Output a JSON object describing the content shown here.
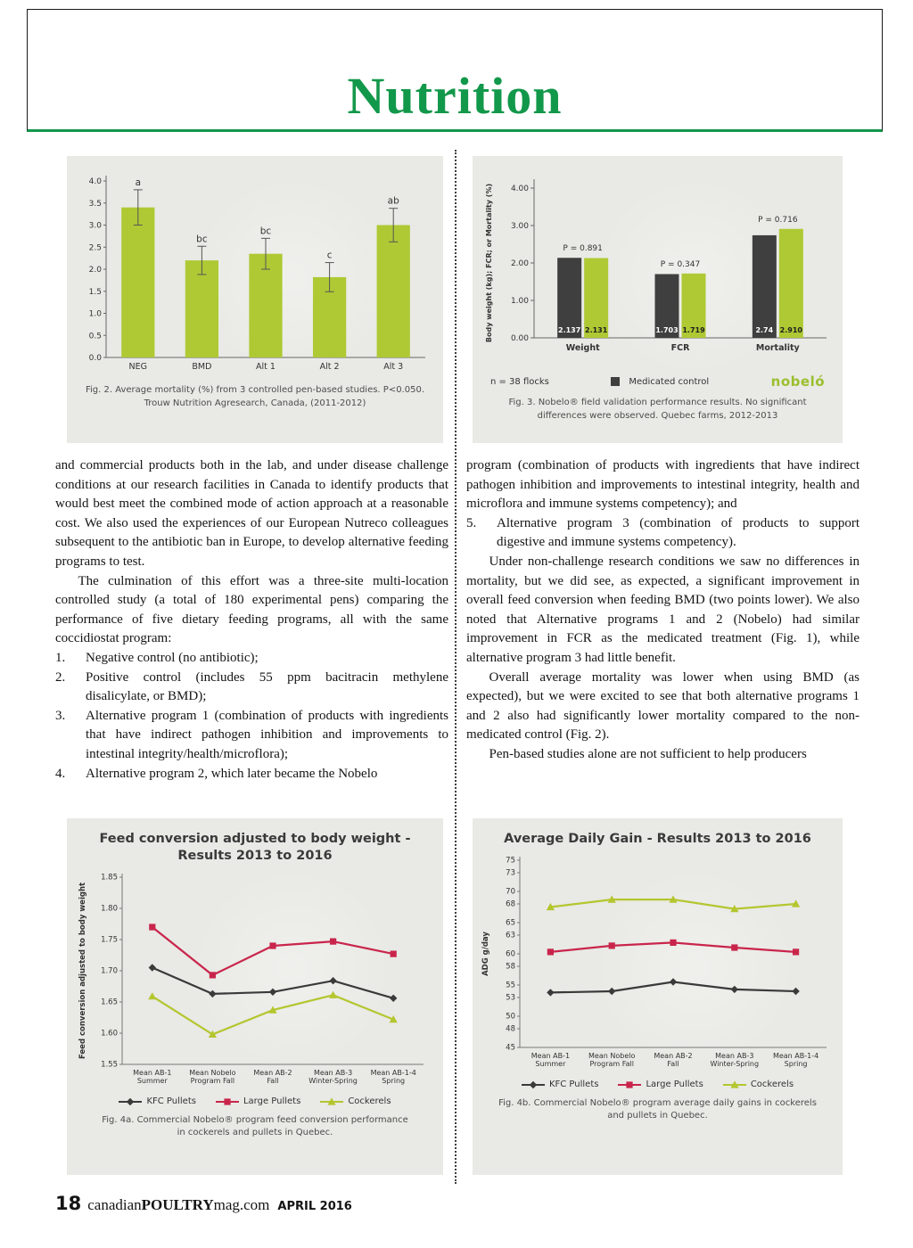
{
  "header": {
    "title": "Nutrition"
  },
  "article": {
    "left_column": {
      "p1": "and commercial products both in the lab, and under disease challenge conditions at our research facilities in Canada to identify products that would best meet the combined mode of action approach at a reasonable cost. We also used the experiences of our European Nutreco colleagues subsequent to the antibiotic ban in Europe, to develop alternative feeding programs to test.",
      "p2": "The culmination of this effort was a three-site multi-location controlled study (a total of 180 experimental pens) comparing the performance of five dietary feeding programs, all with the same coccidiostat program:",
      "list": [
        {
          "num": "1.",
          "text": "Negative control (no antibiotic);"
        },
        {
          "num": "2.",
          "text": "Positive control (includes 55 ppm bacitracin methylene disalicylate, or BMD);"
        },
        {
          "num": "3.",
          "text": "Alternative program 1 (combination of products with ingredients that have indirect pathogen inhibition and improvements to intestinal integrity/health/microflora);"
        },
        {
          "num": "4.",
          "text": "Alternative program 2, which later became the Nobelo"
        }
      ]
    },
    "right_column": {
      "continuation": "program (combination of products with ingredients that have indirect pathogen inhibition and improvements to intestinal integrity, health and microflora and immune systems competency); and",
      "item5": {
        "num": "5.",
        "text": "Alternative program 3 (combination of products to support digestive and immune systems competency)."
      },
      "p3": "Under non-challenge research conditions we saw no differences in mortality, but we did see, as expected, a significant improvement in overall feed conversion when feeding BMD (two points lower). We also noted that Alternative programs 1 and 2 (Nobelo) had similar improvement in FCR as the medicated treatment (Fig. 1), while alternative program 3 had little benefit.",
      "p4": "Overall average mortality was lower when using BMD (as expected), but we were excited to see that both alternative programs 1 and 2 also had significantly lower mortality compared to the non-medicated control (Fig. 2).",
      "p5": "Pen-based studies alone are not sufficient to help producers"
    }
  },
  "chart_data": {
    "fig2": {
      "type": "bar",
      "categories": [
        "NEG",
        "BMD",
        "Alt 1",
        "Alt 2",
        "Alt 3"
      ],
      "values": [
        3.4,
        2.2,
        2.35,
        1.82,
        3.0
      ],
      "errors": [
        0.4,
        0.32,
        0.35,
        0.33,
        0.38
      ],
      "sig_labels": [
        "a",
        "bc",
        "bc",
        "c",
        "ab"
      ],
      "ylim": [
        0,
        4
      ],
      "ytick_values": [
        0,
        0.5,
        1,
        1.5,
        2,
        2.5,
        3,
        3.5,
        4
      ],
      "ytick_labels": [
        "0.0",
        "0.5",
        "1.0",
        "1.5",
        "2.0",
        "2.5",
        "3.0",
        "3.5",
        "4.0"
      ],
      "bar_color": "#aec934",
      "caption_line1": "Fig. 2.   Average mortality (%) from 3 controlled pen-based studies. P<0.050.",
      "caption_line2": "Trouw Nutrition Agresearch, Canada, (2011-2012)"
    },
    "fig3": {
      "type": "grouped-bar",
      "ylabel": "Body weight (kg); FCR; or Mortality (%)",
      "groups": [
        "Weight",
        "FCR",
        "Mortality"
      ],
      "series": [
        {
          "name": "Medicated control",
          "color": "#3f3f3f",
          "values": [
            2.137,
            1.703,
            2.74
          ],
          "value_labels": [
            "2.137",
            "1.703",
            "2.74"
          ]
        },
        {
          "name": "Nobelo",
          "color": "#aec934",
          "values": [
            2.131,
            1.719,
            2.91
          ],
          "value_labels": [
            "2.131",
            "1.719",
            "2.910"
          ]
        }
      ],
      "p_values": [
        "P = 0.891",
        "P = 0.347",
        "P = 0.716"
      ],
      "ylim": [
        0,
        4
      ],
      "ytick_values": [
        0,
        1,
        2,
        3,
        4
      ],
      "ytick_labels": [
        "0.00",
        "1.00",
        "2.00",
        "3.00",
        "4.00"
      ],
      "note": "n = 38 flocks",
      "legend_label": "Medicated control",
      "logo_text": "nobeló",
      "caption_line1": "Fig. 3.   Nobelo® field validation performance results. No significant",
      "caption_line2": "differences were observed. Quebec farms, 2012-2013"
    },
    "fig4a": {
      "type": "line",
      "title_line1": "Feed conversion adjusted to body weight -",
      "title_line2": "Results 2013 to 2016",
      "ylabel": "Feed conversion adjusted to body weight",
      "categories": [
        "Mean AB-1|Summer",
        "Mean Nobelo|Program Fall",
        "Mean AB-2|Fall",
        "Mean AB-3|Winter-Spring",
        "Mean AB-1-4|Spring"
      ],
      "series": [
        {
          "name": "KFC Pullets",
          "color": "#3a3a3a",
          "marker": "diamond",
          "values": [
            1.705,
            1.663,
            1.666,
            1.684,
            1.656
          ]
        },
        {
          "name": "Large Pullets",
          "color": "#c9254b",
          "marker": "square",
          "values": [
            1.77,
            1.693,
            1.74,
            1.747,
            1.727
          ]
        },
        {
          "name": "Cockerels",
          "color": "#b4c62e",
          "marker": "triangle",
          "values": [
            1.659,
            1.598,
            1.637,
            1.661,
            1.622
          ]
        }
      ],
      "ylim": [
        1.55,
        1.85
      ],
      "ytick_values": [
        1.55,
        1.6,
        1.65,
        1.7,
        1.75,
        1.8,
        1.85
      ],
      "ytick_labels": [
        "1.55",
        "1.60",
        "1.65",
        "1.70",
        "1.75",
        "1.80",
        "1.85"
      ],
      "caption_line1": "Fig. 4a.   Commercial Nobelo® program feed conversion performance",
      "caption_line2": "in cockerels and pullets in Quebec."
    },
    "fig4b": {
      "type": "line",
      "title_line1": "Average Daily Gain - Results 2013 to 2016",
      "title_line2": "",
      "ylabel": "ADG g/day",
      "categories": [
        "Mean AB-1|Summer",
        "Mean Nobelo|Program Fall",
        "Mean AB-2|Fall",
        "Mean AB-3|Winter-Spring",
        "Mean AB-1-4|Spring"
      ],
      "series": [
        {
          "name": "KFC Pullets",
          "color": "#3a3a3a",
          "marker": "diamond",
          "values": [
            53.8,
            54.0,
            55.5,
            54.3,
            54.0
          ]
        },
        {
          "name": "Large Pullets",
          "color": "#c9254b",
          "marker": "square",
          "values": [
            60.3,
            61.3,
            61.8,
            61.0,
            60.3
          ]
        },
        {
          "name": "Cockerels",
          "color": "#b4c62e",
          "marker": "triangle",
          "values": [
            67.5,
            68.7,
            68.7,
            67.2,
            68.0
          ]
        }
      ],
      "ylim": [
        45,
        75
      ],
      "ytick_values": [
        45,
        48,
        50,
        53,
        55,
        58,
        60,
        63,
        65,
        68,
        70,
        73,
        75
      ],
      "ytick_labels": [
        "45",
        "48",
        "50",
        "53",
        "55",
        "58",
        "60",
        "63",
        "65",
        "68",
        "70",
        "73",
        "75"
      ],
      "caption_line1": "Fig. 4b.   Commercial Nobelo® program average daily gains in cockerels",
      "caption_line2": "and pullets in Quebec."
    }
  },
  "footer": {
    "page_number": "18",
    "brand_prefix": "canadian",
    "brand_mid": "POULTRY",
    "brand_suffix": "mag.com",
    "issue": "APRIL 2016"
  },
  "colors": {
    "accent_green": "#12984a",
    "lime_green": "#aec934",
    "dark_bar": "#3f3f3f",
    "red_line": "#c9254b"
  }
}
